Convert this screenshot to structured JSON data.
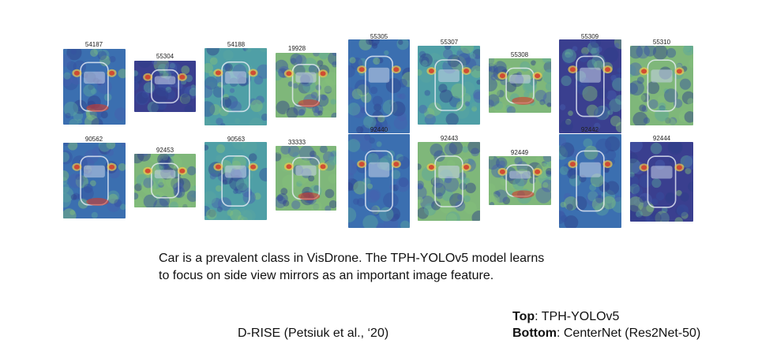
{
  "tiles_top": [
    {
      "id": "54187",
      "palette": "blue"
    },
    {
      "id": "55304",
      "palette": "indigo"
    },
    {
      "id": "54188",
      "palette": "teal"
    },
    {
      "id": "19928",
      "palette": "green"
    },
    {
      "id": "55305",
      "palette": "blue"
    },
    {
      "id": "55307",
      "palette": "teal"
    },
    {
      "id": "55308",
      "palette": "green"
    },
    {
      "id": "55309",
      "palette": "indigo"
    },
    {
      "id": "55310",
      "palette": "green"
    }
  ],
  "tiles_bottom": [
    {
      "id": "90562",
      "palette": "blue"
    },
    {
      "id": "92453",
      "palette": "green"
    },
    {
      "id": "90563",
      "palette": "teal"
    },
    {
      "id": "33333",
      "palette": "green"
    },
    {
      "id": "92440",
      "palette": "blue"
    },
    {
      "id": "92443",
      "palette": "green"
    },
    {
      "id": "92449",
      "palette": "green"
    },
    {
      "id": "92442",
      "palette": "blue"
    },
    {
      "id": "92444",
      "palette": "indigo"
    }
  ],
  "caption": {
    "line1": "Car is a prevalent class in VisDrone. The TPH-YOLOv5 model learns",
    "line2": "to focus on side view mirrors as an important image feature."
  },
  "credit": "D-RISE (Petsiuk et al., ‘20)",
  "legend": {
    "top_key": "Top",
    "top_value": ": TPH-YOLOv5",
    "bottom_key": "Bottom",
    "bottom_value": ": CenterNet (Res2Net-50)"
  },
  "colors": {
    "blue": "#3b6fb0",
    "indigo": "#3a3f8f",
    "teal": "#4f9fa6",
    "green": "#7fb77a",
    "hot": "#d23a2a",
    "warm": "#f2c94c"
  }
}
